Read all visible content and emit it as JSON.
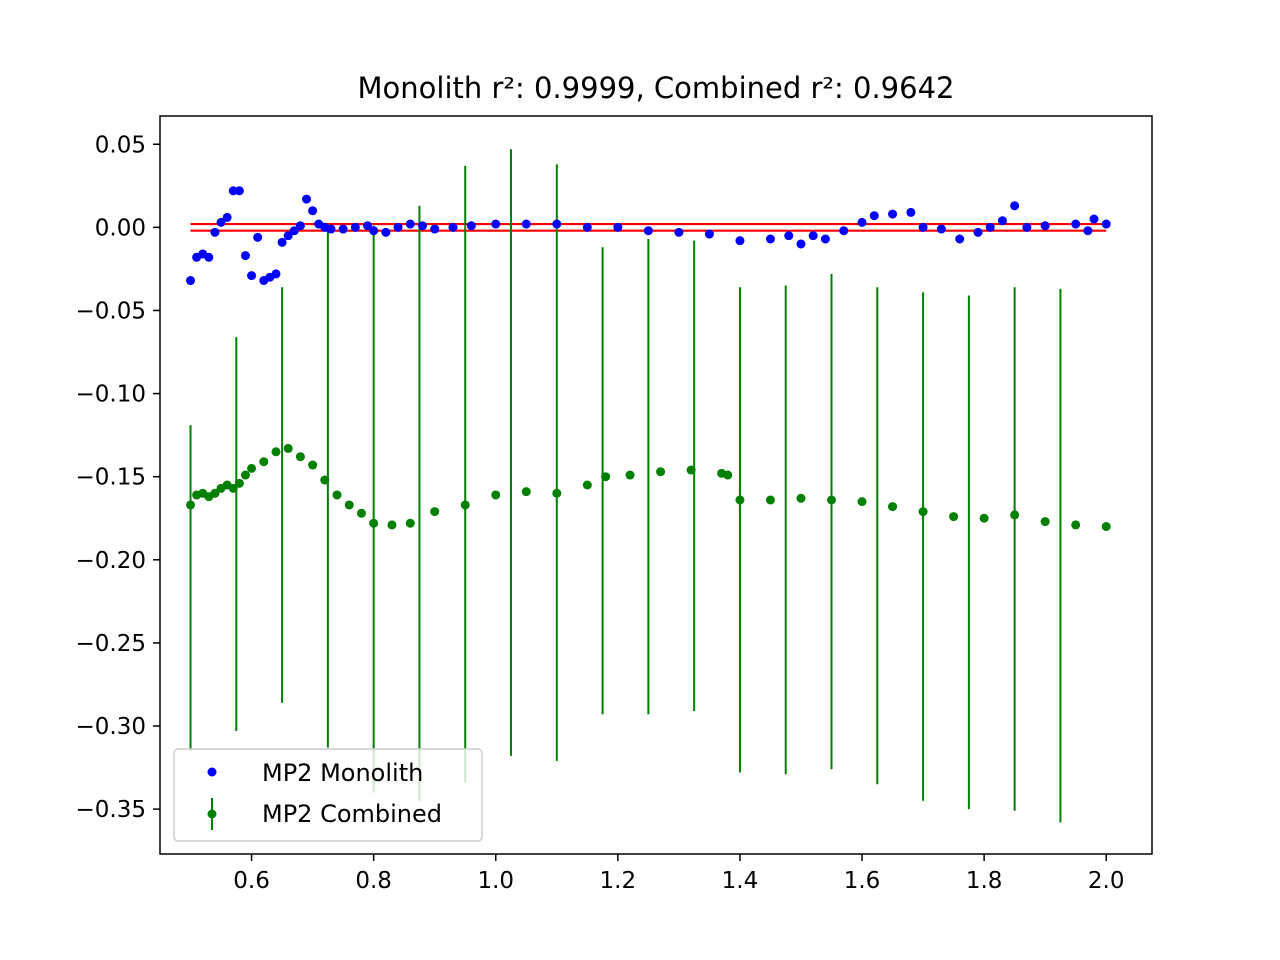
{
  "chart_data": {
    "type": "scatter",
    "title": "Monolith r²: 0.9999, Combined r²: 0.9642",
    "xlabel": "",
    "ylabel": "",
    "xlim": [
      0.45,
      2.075
    ],
    "ylim": [
      -0.377,
      0.067
    ],
    "xticks": [
      0.6,
      0.8,
      1.0,
      1.2,
      1.4,
      1.6,
      1.8,
      2.0
    ],
    "xtick_labels": [
      "0.6",
      "0.8",
      "1.0",
      "1.2",
      "1.4",
      "1.6",
      "1.8",
      "2.0"
    ],
    "yticks": [
      0.05,
      0.0,
      -0.05,
      -0.1,
      -0.15,
      -0.2,
      -0.25,
      -0.3,
      -0.35
    ],
    "ytick_labels": [
      "0.05",
      "0.00",
      "−0.05",
      "−0.10",
      "−0.15",
      "−0.20",
      "−0.25",
      "−0.30",
      "−0.35"
    ],
    "grid": false,
    "legend_position": "lower-left",
    "colors": {
      "monolith": "#0000ff",
      "combined": "#008000",
      "reference": "#ff0000"
    },
    "reference_lines": {
      "x_range": [
        0.5,
        2.0
      ],
      "y_values": [
        0.002,
        -0.002
      ]
    },
    "series": [
      {
        "name": "MP2 Monolith",
        "marker": "dot",
        "x": [
          0.5,
          0.51,
          0.52,
          0.53,
          0.54,
          0.55,
          0.56,
          0.57,
          0.58,
          0.59,
          0.6,
          0.61,
          0.62,
          0.63,
          0.64,
          0.65,
          0.66,
          0.67,
          0.68,
          0.69,
          0.7,
          0.71,
          0.72,
          0.73,
          0.75,
          0.77,
          0.79,
          0.8,
          0.82,
          0.84,
          0.86,
          0.88,
          0.9,
          0.93,
          0.96,
          1.0,
          1.05,
          1.1,
          1.15,
          1.2,
          1.25,
          1.3,
          1.35,
          1.4,
          1.45,
          1.48,
          1.5,
          1.52,
          1.54,
          1.57,
          1.6,
          1.62,
          1.65,
          1.68,
          1.7,
          1.73,
          1.76,
          1.79,
          1.81,
          1.83,
          1.85,
          1.87,
          1.9,
          1.95,
          1.97,
          1.98,
          2.0
        ],
        "y": [
          -0.032,
          -0.018,
          -0.016,
          -0.018,
          -0.003,
          0.003,
          0.006,
          0.022,
          0.022,
          -0.017,
          -0.029,
          -0.006,
          -0.032,
          -0.03,
          -0.028,
          -0.009,
          -0.005,
          -0.002,
          0.001,
          0.017,
          0.01,
          0.002,
          0.0,
          -0.001,
          -0.001,
          0.0,
          0.001,
          -0.002,
          -0.003,
          0.0,
          0.002,
          0.001,
          -0.001,
          0.0,
          0.001,
          0.002,
          0.002,
          0.002,
          0.0,
          0.0,
          -0.002,
          -0.003,
          -0.004,
          -0.008,
          -0.007,
          -0.005,
          -0.01,
          -0.005,
          -0.007,
          -0.002,
          0.003,
          0.007,
          0.008,
          0.009,
          0.0,
          -0.001,
          -0.007,
          -0.003,
          0.0,
          0.004,
          0.013,
          0.0,
          0.001,
          0.002,
          -0.002,
          0.005,
          0.002
        ]
      },
      {
        "name": "MP2 Combined",
        "marker": "dot-errorbar",
        "x": [
          0.5,
          0.51,
          0.52,
          0.53,
          0.54,
          0.55,
          0.56,
          0.57,
          0.58,
          0.59,
          0.6,
          0.62,
          0.64,
          0.66,
          0.68,
          0.7,
          0.72,
          0.74,
          0.76,
          0.78,
          0.8,
          0.83,
          0.86,
          0.9,
          0.95,
          1.0,
          1.05,
          1.1,
          1.15,
          1.18,
          1.22,
          1.27,
          1.32,
          1.37,
          1.38,
          1.4,
          1.45,
          1.5,
          1.55,
          1.6,
          1.65,
          1.7,
          1.75,
          1.8,
          1.85,
          1.9,
          1.95,
          2.0
        ],
        "y": [
          -0.167,
          -0.161,
          -0.16,
          -0.162,
          -0.16,
          -0.157,
          -0.155,
          -0.157,
          -0.154,
          -0.149,
          -0.145,
          -0.141,
          -0.135,
          -0.133,
          -0.138,
          -0.143,
          -0.152,
          -0.161,
          -0.167,
          -0.172,
          -0.178,
          -0.179,
          -0.178,
          -0.171,
          -0.167,
          -0.161,
          -0.159,
          -0.16,
          -0.155,
          -0.15,
          -0.149,
          -0.147,
          -0.146,
          -0.148,
          -0.149,
          -0.164,
          -0.164,
          -0.163,
          -0.164,
          -0.165,
          -0.168,
          -0.171,
          -0.174,
          -0.175,
          -0.173,
          -0.177,
          -0.179,
          -0.18
        ],
        "errorbars": {
          "x": [
            0.5,
            0.575,
            0.65,
            0.725,
            0.8,
            0.875,
            0.95,
            1.025,
            1.1,
            1.175,
            1.25,
            1.325,
            1.4,
            1.475,
            1.55,
            1.625,
            1.7,
            1.775,
            1.85,
            1.925
          ],
          "low": [
            -0.315,
            -0.303,
            -0.286,
            -0.313,
            -0.34,
            -0.345,
            -0.334,
            -0.318,
            -0.321,
            -0.293,
            -0.293,
            -0.291,
            -0.328,
            -0.329,
            -0.326,
            -0.335,
            -0.345,
            -0.35,
            -0.351,
            -0.358
          ],
          "high": [
            -0.119,
            -0.066,
            -0.036,
            0.002,
            0.001,
            0.013,
            0.037,
            0.047,
            0.038,
            -0.012,
            -0.007,
            -0.008,
            -0.036,
            -0.035,
            -0.028,
            -0.036,
            -0.039,
            -0.041,
            -0.036,
            -0.037
          ]
        }
      }
    ]
  }
}
